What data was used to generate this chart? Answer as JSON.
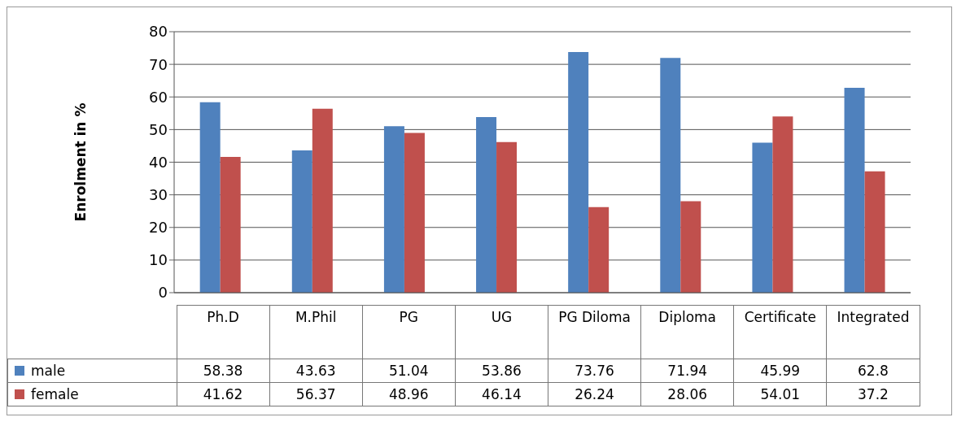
{
  "chart_data": {
    "type": "bar",
    "ylabel": "Enrolment in %",
    "categories": [
      "Ph.D",
      "M.Phil",
      "PG",
      "UG",
      "PG Diloma",
      "Diploma",
      "Certificate",
      "Integrated"
    ],
    "series": [
      {
        "name": "male",
        "color": "#4f81bd",
        "values": [
          58.38,
          43.63,
          51.04,
          53.86,
          73.76,
          71.94,
          45.99,
          62.8
        ]
      },
      {
        "name": "female",
        "color": "#c0504d",
        "values": [
          41.62,
          56.37,
          48.96,
          46.14,
          26.24,
          28.06,
          54.01,
          37.2
        ]
      }
    ],
    "ylim": [
      0,
      80
    ],
    "yticks": [
      0,
      10,
      20,
      30,
      40,
      50,
      60,
      70,
      80
    ],
    "grid": "y",
    "legend": "bottom",
    "data_labels": true
  }
}
